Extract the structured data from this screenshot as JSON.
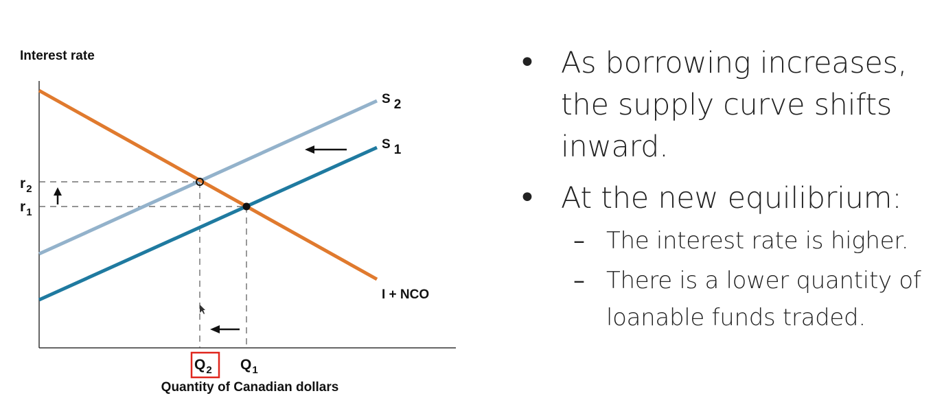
{
  "diagram": {
    "y_axis_title": "Interest rate",
    "x_axis_title": "Quantity of Canadian dollars",
    "curves": {
      "demand": {
        "label": "I + NCO",
        "color": "#E07A2E"
      },
      "supply_old": {
        "label_main": "S",
        "label_sub": "1",
        "color": "#1F7AA0"
      },
      "supply_new": {
        "label_main": "S",
        "label_sub": "2",
        "color": "#93B2CB"
      }
    },
    "y_ticks": [
      {
        "main": "r",
        "sub": "2"
      },
      {
        "main": "r",
        "sub": "1"
      }
    ],
    "x_ticks": [
      {
        "main": "Q",
        "sub": "2",
        "highlighted": true,
        "highlight_color": "#E0261D"
      },
      {
        "main": "Q",
        "sub": "1",
        "highlighted": false
      }
    ]
  },
  "bullets": [
    {
      "text": "As borrowing increases, the supply curve shifts inward.",
      "lines": [
        "As borrowing increases,",
        "the supply curve shifts",
        "inward."
      ]
    },
    {
      "text": "At the new equilibrium:",
      "lines": [
        "At the new equilibrium:"
      ],
      "subitems": [
        {
          "lines": [
            "The interest rate is higher."
          ]
        },
        {
          "lines": [
            "There is a lower quantity of",
            "loanable funds traded."
          ]
        }
      ]
    }
  ],
  "bullet_symbol": "•",
  "sub_symbol": "–"
}
